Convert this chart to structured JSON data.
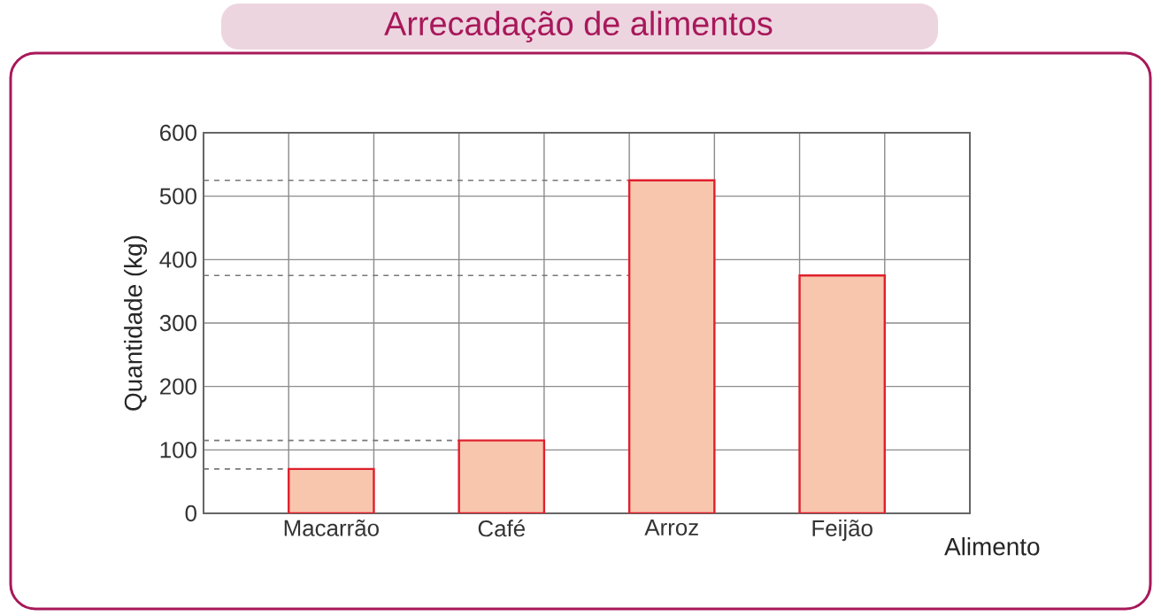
{
  "chart_data": {
    "type": "bar",
    "title": "Arrecadação de alimentos",
    "xlabel": "Alimento",
    "ylabel": "Quantidade (kg)",
    "categories": [
      "Macarrão",
      "Café",
      "Arroz",
      "Feijão"
    ],
    "values": [
      70,
      115,
      525,
      375
    ],
    "color": "#f7c6ad",
    "ylim": [
      0,
      600
    ],
    "yticks": [
      0,
      100,
      200,
      300,
      400,
      500,
      600
    ],
    "grid": true,
    "ref_lines": [
      {
        "axis": "y",
        "value": 70,
        "line_style": "dashed",
        "color": "#777777"
      },
      {
        "axis": "y",
        "value": 115,
        "line_style": "dashed",
        "color": "#777777"
      },
      {
        "axis": "y",
        "value": 375,
        "line_style": "dashed",
        "color": "#777777"
      },
      {
        "axis": "y",
        "value": 525,
        "line_style": "dashed",
        "color": "#777777"
      }
    ]
  }
}
